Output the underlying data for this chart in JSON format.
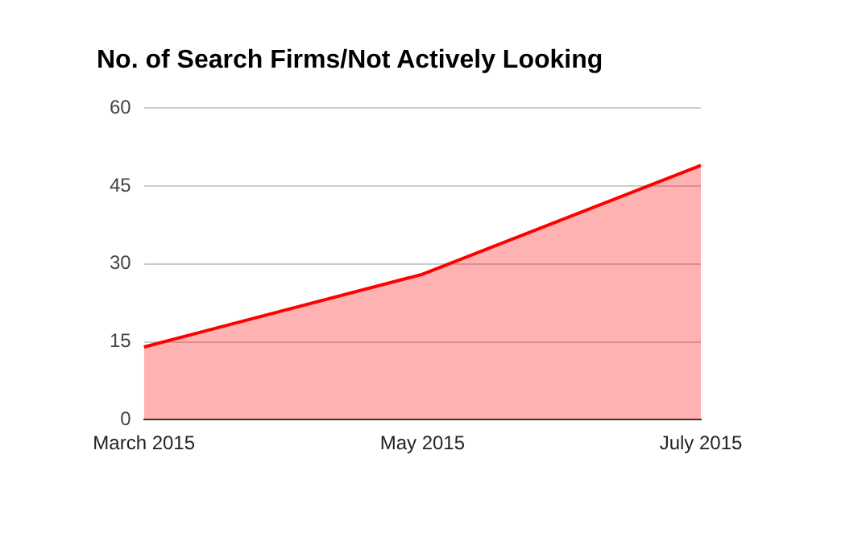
{
  "chart_data": {
    "type": "area",
    "title": "No. of Search Firms/Not Actively Looking",
    "categories": [
      "March 2015",
      "May 2015",
      "July 2015"
    ],
    "series": [
      {
        "color": "#ff0000",
        "values": [
          14,
          28,
          49
        ]
      }
    ],
    "ylim": [
      0,
      60
    ],
    "yticks": [
      0,
      15,
      30,
      45,
      60
    ],
    "grid": "y",
    "legend": false
  }
}
